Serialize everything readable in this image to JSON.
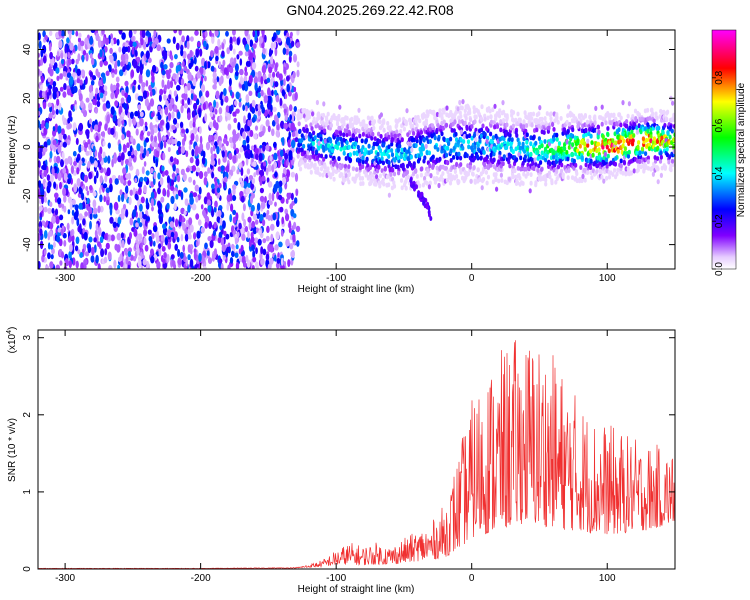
{
  "title": "GN04.2025.269.22.42.R08",
  "chart_data": [
    {
      "type": "heatmap",
      "title": "GN04.2025.269.22.42.R08",
      "xlabel": "Height of straight line (km)",
      "ylabel": "Frequency (Hz)",
      "xlim": [
        -320,
        150
      ],
      "ylim": [
        -50,
        48
      ],
      "x_ticks": [
        -300,
        -200,
        -100,
        0,
        100
      ],
      "y_ticks": [
        -40,
        -20,
        0,
        20,
        40
      ],
      "colorbar": {
        "label": "Normalized spectral amplitude",
        "range": [
          0,
          1
        ],
        "ticks": [
          "0.0",
          "0.2",
          "0.4",
          "0.6",
          "0.8"
        ],
        "colors": [
          "#ffffff",
          "#8000ff",
          "#0000ff",
          "#00ffff",
          "#00ff00",
          "#ffff00",
          "#ff0000",
          "#ff00ff"
        ]
      },
      "noise_region": {
        "x": [
          -320,
          -128
        ],
        "frequency": [
          -50,
          48
        ],
        "amplitude": [
          0.05,
          0.3
        ]
      },
      "signal_ridge": {
        "x": [
          -128,
          -110,
          -90,
          -70,
          -50,
          -30,
          -10,
          10,
          30,
          50,
          70,
          90,
          110,
          130,
          150
        ],
        "frequency": [
          3,
          1,
          -1,
          -2,
          -3,
          0,
          1,
          1,
          0,
          -1,
          0,
          0,
          1,
          3,
          2
        ],
        "amplitude": [
          0.35,
          0.4,
          0.4,
          0.4,
          0.4,
          0.4,
          0.4,
          0.4,
          0.4,
          0.5,
          0.6,
          0.8,
          0.9,
          0.85,
          0.7
        ]
      },
      "secondary_branch": {
        "x": [
          -45,
          -35,
          -30
        ],
        "frequency": [
          -14,
          -22,
          -28
        ]
      }
    },
    {
      "type": "line",
      "xlabel": "Height of straight line (km)",
      "ylabel": "SNR (10 * v/v)",
      "y_scale_label": "(x10",
      "y_scale_exponent": "4",
      "y_scale_suffix": ")",
      "xlim": [
        -320,
        150
      ],
      "ylim": [
        0,
        3.1
      ],
      "x_ticks": [
        -300,
        -200,
        -100,
        0,
        100
      ],
      "y_ticks": [
        0,
        1,
        2,
        3
      ],
      "color": "#f03030",
      "series": [
        {
          "x": [
            -320,
            -200,
            -130,
            -120,
            -110,
            -100,
            -90,
            -80,
            -70,
            -60,
            -50,
            -40,
            -30,
            -20,
            -10,
            0,
            10,
            20,
            30,
            40,
            50,
            60,
            70,
            80,
            90,
            100,
            110,
            120,
            130,
            140,
            150
          ],
          "upper": [
            0.01,
            0.01,
            0.02,
            0.06,
            0.12,
            0.25,
            0.35,
            0.3,
            0.35,
            0.3,
            0.4,
            0.5,
            0.6,
            0.85,
            1.5,
            2.2,
            2.6,
            2.8,
            3.0,
            3.05,
            3.0,
            2.8,
            2.5,
            2.2,
            2.0,
            1.9,
            1.8,
            1.7,
            1.65,
            1.6,
            1.5
          ],
          "lower": [
            0.005,
            0.005,
            0.01,
            0.02,
            0.03,
            0.05,
            0.06,
            0.05,
            0.06,
            0.06,
            0.08,
            0.1,
            0.12,
            0.15,
            0.25,
            0.4,
            0.45,
            0.5,
            0.55,
            0.6,
            0.55,
            0.55,
            0.5,
            0.5,
            0.45,
            0.45,
            0.45,
            0.5,
            0.5,
            0.55,
            0.6
          ]
        }
      ]
    }
  ]
}
